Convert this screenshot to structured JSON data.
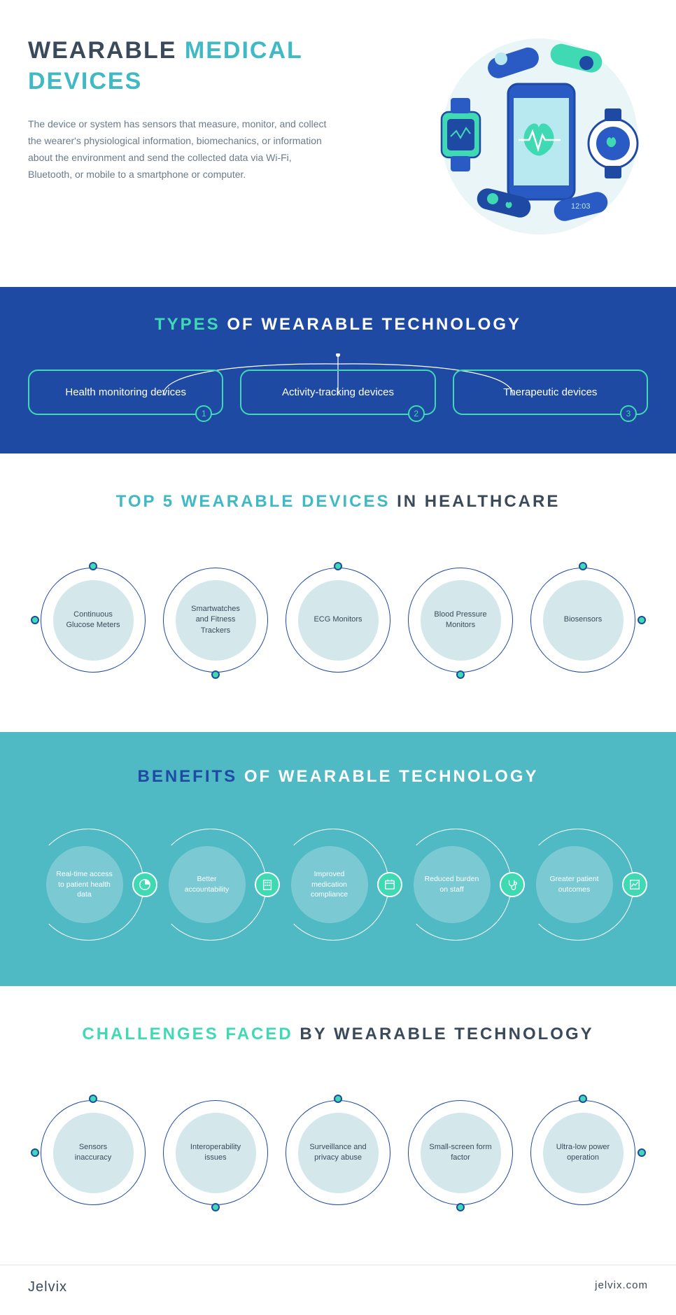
{
  "hero": {
    "title_dark": "WEARABLE",
    "title_teal": "MEDICAL DEVICES",
    "description": "The device or system has sensors that measure, monitor, and collect the wearer's physiological information, biomechanics, or information about the environment and send the collected data via Wi-Fi, Bluetooth, or mobile to a smartphone or computer."
  },
  "types": {
    "title_green": "TYPES",
    "title_white": "OF WEARABLE TECHNOLOGY",
    "items": [
      {
        "label": "Health monitoring devices",
        "num": "1"
      },
      {
        "label": "Activity-tracking devices",
        "num": "2"
      },
      {
        "label": "Therapeutic devices",
        "num": "3"
      }
    ]
  },
  "top5": {
    "title_teal": "TOP 5 WEARABLE DEVICES",
    "title_dark": "IN HEALTHCARE",
    "items": [
      {
        "label": "Continuous Glucose Meters"
      },
      {
        "label": "Smartwatches and Fitness Trackers"
      },
      {
        "label": "ECG Monitors"
      },
      {
        "label": "Blood Pressure Monitors"
      },
      {
        "label": "Biosensors"
      }
    ]
  },
  "benefits": {
    "title_blue": "BENEFITS",
    "title_white": "OF WEARABLE TECHNOLOGY",
    "items": [
      {
        "label": "Real-time access to patient health data",
        "icon": "pie"
      },
      {
        "label": "Better accountability",
        "icon": "building"
      },
      {
        "label": "Improved medication compliance",
        "icon": "calendar"
      },
      {
        "label": "Reduced burden on staff",
        "icon": "steth"
      },
      {
        "label": "Greater patient outcomes",
        "icon": "chart"
      }
    ]
  },
  "challenges": {
    "title_green": "CHALLENGES FACED",
    "title_dark": "BY WEARABLE TECHNOLOGY",
    "items": [
      {
        "label": "Sensors inaccuracy"
      },
      {
        "label": "Interoperability issues"
      },
      {
        "label": "Surveillance and privacy abuse"
      },
      {
        "label": "Small-screen form factor"
      },
      {
        "label": "Ultra-low power operation"
      }
    ]
  },
  "footer": {
    "logo": "Jelvix",
    "url": "jelvix.com"
  },
  "colors": {
    "dark_text": "#3a4a5a",
    "teal": "#3fb9c4",
    "green": "#3fd9b4",
    "blue": "#1e4aa3",
    "light_circle": "#d4e8ec"
  }
}
